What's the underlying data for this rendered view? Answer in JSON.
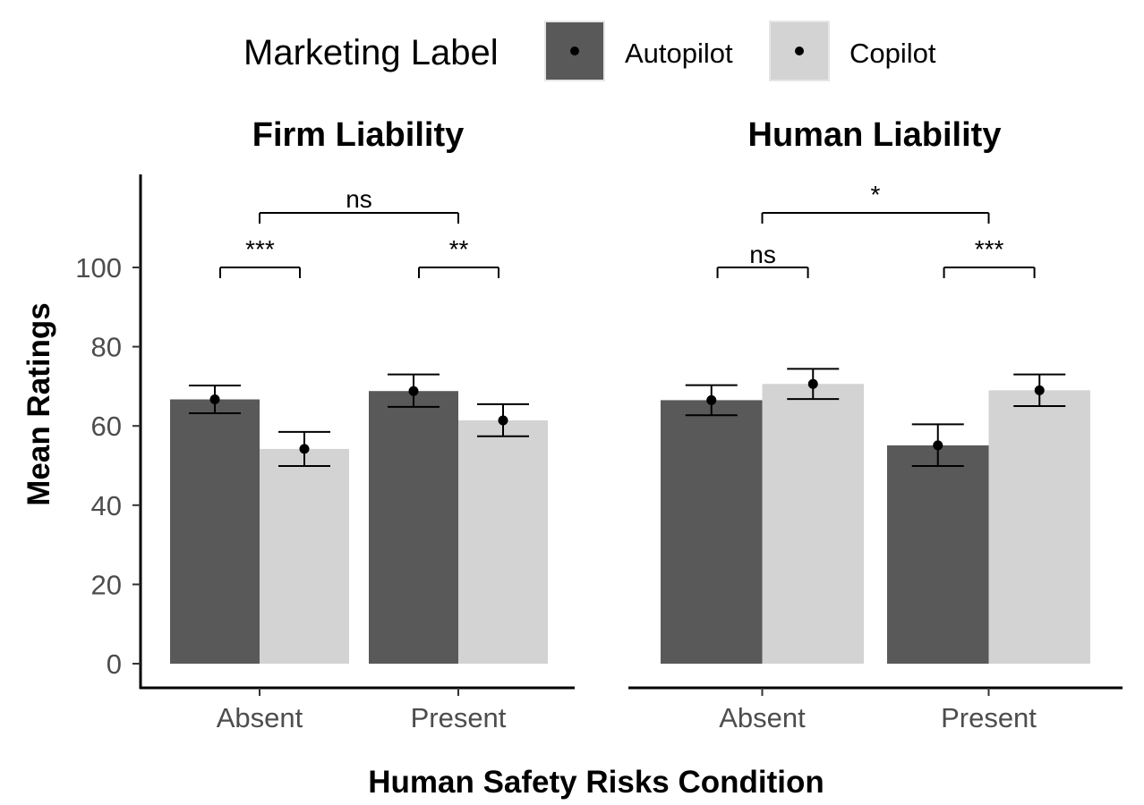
{
  "chart_data": {
    "type": "bar",
    "legend": {
      "title": "Marketing Label",
      "position": "top",
      "items": [
        {
          "name": "Autopilot",
          "color": "#595959"
        },
        {
          "name": "Copilot",
          "color": "#d3d3d3"
        }
      ]
    },
    "ylabel": "Mean Ratings",
    "xlabel": "Human Safety Risks Condition",
    "ylim": [
      0,
      100
    ],
    "yticks": [
      0,
      20,
      40,
      60,
      80,
      100
    ],
    "categories": [
      "Absent",
      "Present"
    ],
    "grid": false,
    "panels": [
      {
        "title": "Firm Liability",
        "series": [
          {
            "name": "Autopilot",
            "values": [
              66.7,
              68.8
            ],
            "error_low": [
              63.2,
              64.8
            ],
            "error_high": [
              70.2,
              73.0
            ]
          },
          {
            "name": "Copilot",
            "values": [
              54.2,
              61.4
            ],
            "error_low": [
              49.9,
              57.4
            ],
            "error_high": [
              58.5,
              65.5
            ]
          }
        ],
        "annotations": [
          {
            "label": "***",
            "type": "within",
            "category": "Absent"
          },
          {
            "label": "**",
            "type": "within",
            "category": "Present"
          },
          {
            "label": "ns",
            "type": "between"
          }
        ]
      },
      {
        "title": "Human Liability",
        "series": [
          {
            "name": "Autopilot",
            "values": [
              66.5,
              55.1
            ],
            "error_low": [
              62.7,
              49.9
            ],
            "error_high": [
              70.3,
              60.4
            ]
          },
          {
            "name": "Copilot",
            "values": [
              70.6,
              69.0
            ],
            "error_low": [
              66.8,
              65.0
            ],
            "error_high": [
              74.4,
              73.0
            ]
          }
        ],
        "annotations": [
          {
            "label": "ns",
            "type": "within",
            "category": "Absent"
          },
          {
            "label": "***",
            "type": "within",
            "category": "Present"
          },
          {
            "label": "*",
            "type": "between"
          }
        ]
      }
    ]
  }
}
